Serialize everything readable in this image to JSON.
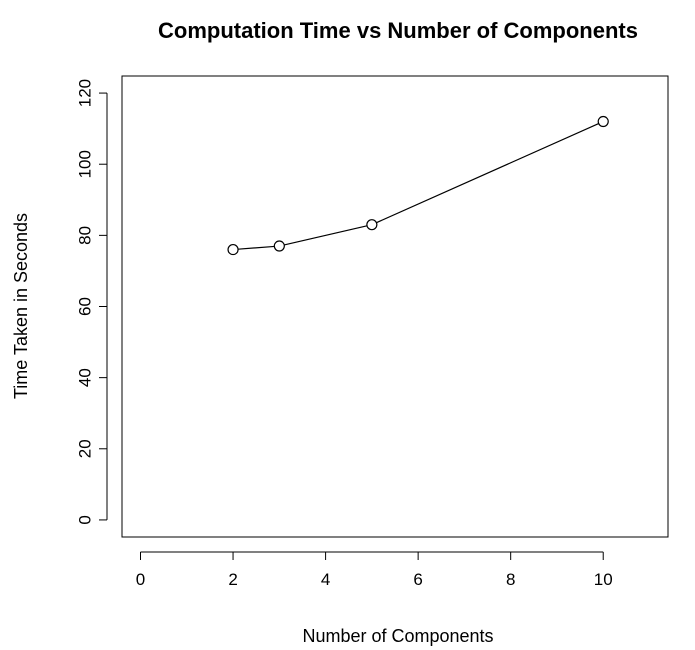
{
  "chart_data": {
    "type": "line",
    "title": "Computation Time vs Number of Components",
    "xlabel": "Number of Components",
    "ylabel": "Time Taken in Seconds",
    "x": [
      2,
      3,
      5,
      10
    ],
    "y": [
      76,
      77,
      83,
      112
    ],
    "xlim": [
      -0.4,
      11.4
    ],
    "ylim": [
      -4.8,
      124.8
    ],
    "xticks": [
      0,
      2,
      4,
      6,
      8,
      10
    ],
    "yticks": [
      0,
      20,
      40,
      60,
      80,
      100,
      120
    ],
    "marker": "open-circle",
    "grid": false,
    "color": "#000000"
  }
}
